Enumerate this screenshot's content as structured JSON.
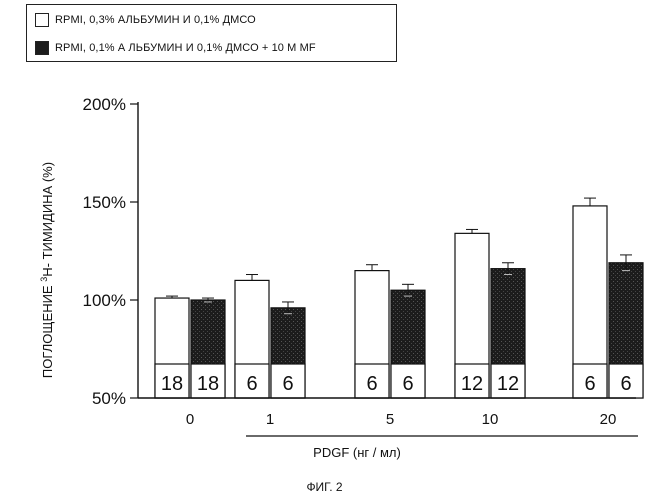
{
  "legend": {
    "items": [
      {
        "label": "RPMI, 0,3% АЛЬБУМИН И 0,1% ДМСО",
        "swatch": "white"
      },
      {
        "label": "RPMI, 0,1% А ЛЬБУМИН И 0,1% ДМСО + 10 M MF",
        "swatch": "dark"
      }
    ]
  },
  "caption": "ФИГ. 2",
  "colors": {
    "white_bar": "#ffffff",
    "dark_bar": "#1c1c1c",
    "ink": "#111111"
  },
  "chart_data": {
    "type": "bar",
    "title": "",
    "xlabel": "PDGF (нг / мл)",
    "ylabel": "ПОГЛОЩЕНИЕ 3H- ТИМИДИНА (%)",
    "ylabel_parts": {
      "before": "ПОГЛОЩЕНИЕ ",
      "sup": "3",
      "after": "H- ТИМИДИНА (%)"
    },
    "categories": [
      "0",
      "1",
      "5",
      "10",
      "20"
    ],
    "ylim": [
      50,
      200
    ],
    "yticks": [
      50,
      100,
      150,
      200
    ],
    "ytick_labels": [
      "50%",
      "100%",
      "150%",
      "200%"
    ],
    "grid": false,
    "legend_position": "top-left",
    "series": [
      {
        "name": "RPMI, 0,3% АЛЬБУМИН И 0,1% ДМСО",
        "values": [
          101,
          110,
          115,
          134,
          148
        ],
        "errors": [
          1,
          3,
          3,
          2,
          4
        ],
        "n": [
          "18",
          "6",
          "6",
          "12",
          "6"
        ]
      },
      {
        "name": "RPMI, 0,1% А ЛЬБУМИН И 0,1% ДМСО + 10 M MF",
        "values": [
          100,
          96,
          105,
          116,
          119
        ],
        "errors": [
          1,
          3,
          3,
          3,
          4
        ],
        "n": [
          "18",
          "6",
          "6",
          "12",
          "6"
        ]
      }
    ]
  }
}
